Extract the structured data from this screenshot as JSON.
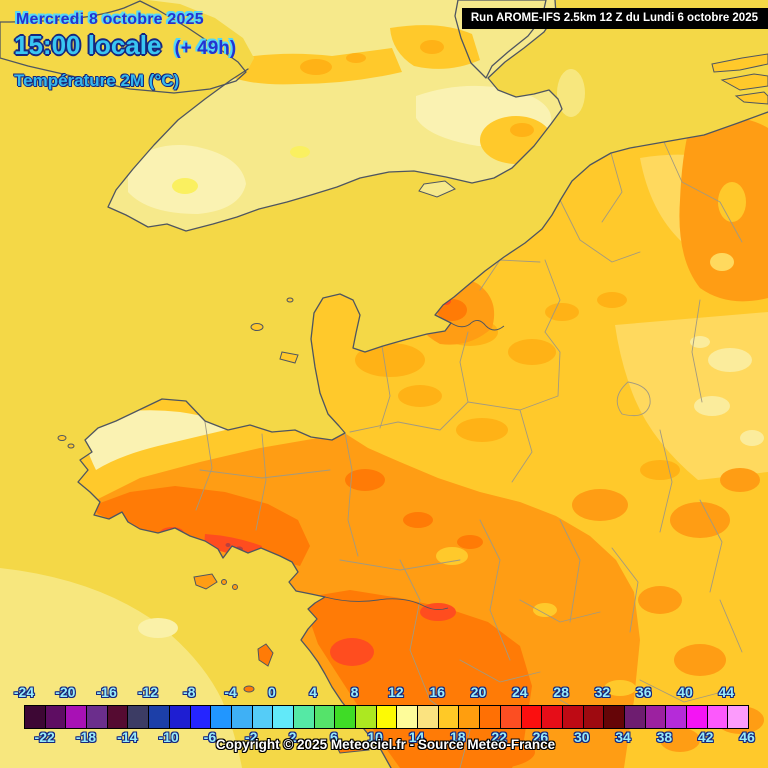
{
  "header": {
    "date_label": "Mercredi 8 octobre 2025",
    "time_label": "15:00 locale",
    "run_offset_label": "(+ 49h)",
    "variable_label": "Température 2M (°C)"
  },
  "run_banner": {
    "text": "Run AROME-IFS 2.5km 12 Z du Lundi 6 octobre 2025",
    "bg": "#000000",
    "fg": "#ffffff"
  },
  "footer": {
    "copyright": "Copyright © 2025 Meteociel.fr - Source Meteo-France"
  },
  "legend": {
    "unit": "°C",
    "min": -24,
    "max": 46,
    "step": 2,
    "ticks_top": [
      -24,
      -20,
      -16,
      -12,
      -8,
      -4,
      0,
      4,
      8,
      12,
      16,
      20,
      24,
      28,
      32,
      36,
      40,
      44
    ],
    "ticks_bottom": [
      -22,
      -18,
      -14,
      -10,
      -6,
      -2,
      2,
      6,
      10,
      14,
      18,
      22,
      26,
      30,
      34,
      38,
      42,
      46
    ],
    "cell_colors": [
      "#3D0734",
      "#5E0D62",
      "#A811B5",
      "#6B2E8C",
      "#550B31",
      "#3C3C64",
      "#1C3FA8",
      "#1E1ED2",
      "#2525FF",
      "#2196FF",
      "#3FB0F5",
      "#55CCF7",
      "#62E9F9",
      "#55E9A5",
      "#55E36A",
      "#3FDC26",
      "#ACE821",
      "#FDFA04",
      "#FEFC9A",
      "#FBE380",
      "#FFC926",
      "#FF9E0E",
      "#FF7004",
      "#FC4E22",
      "#FB0F0F",
      "#E60D18",
      "#BE0A14",
      "#9E0A10",
      "#650507",
      "#6E1D70",
      "#9C21A0",
      "#B52BD9",
      "#F414F4",
      "#FC59FC",
      "#FC9BFC"
    ],
    "tick_color": "#97EBF9"
  },
  "colors": {
    "sea": "#F4D847",
    "sea_pale": "#F7E77E",
    "sea_bright": "#FAF1A8",
    "uk_land": "#F6E98B",
    "uk_pale": "#FAF2B2",
    "bright_spot": "#FAF060",
    "gold": "#FFC92B",
    "gold_light": "#FFD95E",
    "pale_yellow": "#FBEC9C",
    "amber": "#FFB216",
    "orange": "#FF9D14",
    "deep_orange": "#FF7B06",
    "red_orange": "#FF4D1F",
    "red": "#F93A10",
    "dark_speck": "#B84040",
    "coast": "#4E5560",
    "border": "#A39A7F",
    "header_blue": "#2433D0",
    "header_cyan": "#39C6F2",
    "header_cyan2": "#36B9EC",
    "outline_navy": "#16277E",
    "outline_cyan": "#55D7F6"
  }
}
